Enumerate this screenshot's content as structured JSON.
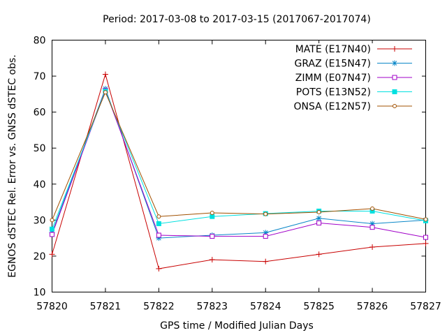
{
  "chart_data": {
    "type": "line",
    "title": "Period: 2017-03-08 to 2017-03-15 (2017067-2017074)",
    "xlabel": "GPS time / Modified Julian Days",
    "ylabel": "EGNOS dSTEC Rel. Error vs. GNSS dSTEC obs.",
    "xlim": [
      57820,
      57827
    ],
    "ylim": [
      10,
      80
    ],
    "xticks": [
      "57820",
      "57821",
      "57822",
      "57823",
      "57824",
      "57825",
      "57826",
      "57827"
    ],
    "yticks": [
      "10",
      "20",
      "30",
      "40",
      "50",
      "60",
      "70",
      "80"
    ],
    "grid": false,
    "legend_position": "top-right",
    "x": [
      57820,
      57821,
      57822,
      57823,
      57824,
      57825,
      57826,
      57827
    ],
    "series": [
      {
        "name": "MATE (E17N40)",
        "color": "#c80000",
        "marker": "plus",
        "values": [
          20.5,
          70.5,
          16.5,
          19.0,
          18.5,
          20.5,
          22.5,
          23.5
        ]
      },
      {
        "name": "GRAZ (E15N47)",
        "color": "#0a87c8",
        "marker": "star",
        "values": [
          26.5,
          66.5,
          25.0,
          25.8,
          26.5,
          30.5,
          29.0,
          30.0
        ]
      },
      {
        "name": "ZIMM (E07N47)",
        "color": "#a000c8",
        "marker": "open-square",
        "values": [
          26.0,
          66.0,
          25.8,
          25.5,
          25.5,
          29.2,
          28.0,
          25.2
        ]
      },
      {
        "name": "POTS (E13N52)",
        "color": "#00e0e0",
        "marker": "filled-square",
        "values": [
          27.5,
          65.8,
          29.0,
          31.0,
          31.8,
          32.5,
          32.5,
          29.8
        ]
      },
      {
        "name": "ONSA (E12N57)",
        "color": "#a05000",
        "marker": "open-circle",
        "values": [
          30.0,
          65.5,
          31.0,
          32.0,
          31.7,
          32.2,
          33.2,
          30.2
        ]
      }
    ]
  }
}
